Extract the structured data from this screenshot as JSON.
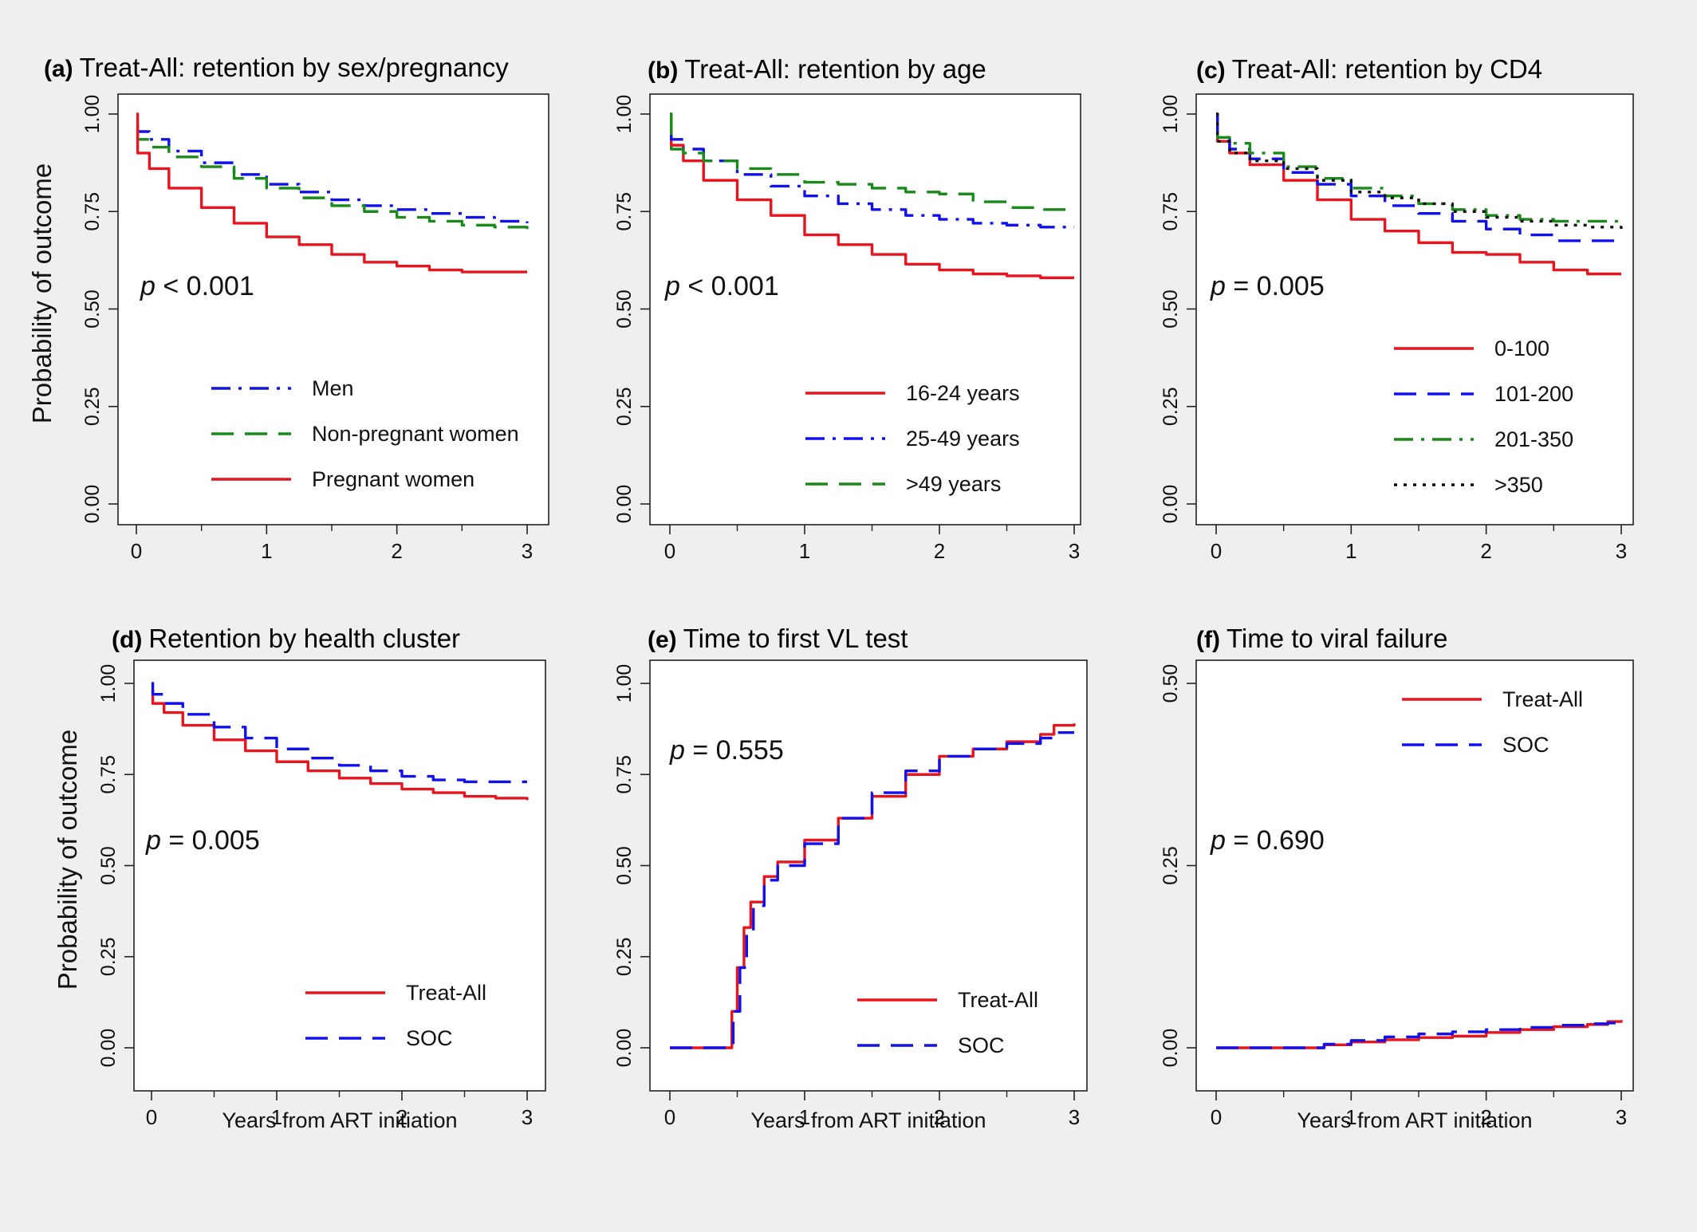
{
  "figure": {
    "ylabel": "Probability of outcome",
    "xlabel": "Years from ART initiation"
  },
  "chart_data": [
    {
      "id": "a",
      "type": "line",
      "title_prefix": "(a)",
      "title": "Treat-All: retention by sex/pregnancy",
      "pvalue_italic": "p",
      "pvalue_rest": " < 0.001",
      "xlim": [
        0,
        3
      ],
      "ylim": [
        0,
        1
      ],
      "xticks": [
        "0",
        "1",
        "2",
        "3"
      ],
      "yticks": [
        "0.00",
        "0.25",
        "0.50",
        "0.75",
        "1.00"
      ],
      "ylabel": "Probability of outcome",
      "xlabel": "",
      "legend_position": "bottom-right",
      "series": [
        {
          "name": "Men",
          "color": "#1111ee",
          "style": "dashdot",
          "x": [
            0,
            0.01,
            0.1,
            0.25,
            0.5,
            0.75,
            1.0,
            1.25,
            1.5,
            1.75,
            2.0,
            2.25,
            2.5,
            2.75,
            3.0
          ],
          "y": [
            0.97,
            0.955,
            0.935,
            0.905,
            0.875,
            0.845,
            0.82,
            0.8,
            0.78,
            0.765,
            0.755,
            0.745,
            0.735,
            0.725,
            0.72
          ]
        },
        {
          "name": "Non-pregnant women",
          "color": "#1a8a1a",
          "style": "dashed",
          "x": [
            0,
            0.01,
            0.1,
            0.25,
            0.5,
            0.75,
            1.0,
            1.25,
            1.5,
            1.75,
            2.0,
            2.25,
            2.5,
            2.75,
            3.0
          ],
          "y": [
            0.96,
            0.935,
            0.915,
            0.89,
            0.865,
            0.835,
            0.81,
            0.785,
            0.765,
            0.75,
            0.735,
            0.725,
            0.715,
            0.71,
            0.705
          ]
        },
        {
          "name": "Pregnant women",
          "color": "#e8141e",
          "style": "solid",
          "x": [
            0,
            0.01,
            0.1,
            0.25,
            0.5,
            0.75,
            1.0,
            1.25,
            1.5,
            1.75,
            2.0,
            2.25,
            2.5,
            2.75,
            3.0
          ],
          "y": [
            1.0,
            0.9,
            0.86,
            0.81,
            0.76,
            0.72,
            0.685,
            0.665,
            0.64,
            0.62,
            0.61,
            0.6,
            0.595,
            0.595,
            0.595
          ]
        }
      ]
    },
    {
      "id": "b",
      "type": "line",
      "title_prefix": "(b)",
      "title": "Treat-All: retention by age",
      "pvalue_italic": "p",
      "pvalue_rest": " < 0.001",
      "xlim": [
        0,
        3
      ],
      "ylim": [
        0,
        1
      ],
      "xticks": [
        "0",
        "1",
        "2",
        "3"
      ],
      "yticks": [
        "0.00",
        "0.25",
        "0.50",
        "0.75",
        "1.00"
      ],
      "ylabel": "",
      "xlabel": "",
      "legend_position": "bottom-right",
      "series": [
        {
          "name": "16-24 years",
          "color": "#e8141e",
          "style": "solid",
          "x": [
            0,
            0.01,
            0.1,
            0.25,
            0.5,
            0.75,
            1.0,
            1.25,
            1.5,
            1.75,
            2.0,
            2.25,
            2.5,
            2.75,
            3.0
          ],
          "y": [
            1.0,
            0.92,
            0.88,
            0.83,
            0.78,
            0.74,
            0.69,
            0.665,
            0.64,
            0.615,
            0.6,
            0.59,
            0.585,
            0.58,
            0.58
          ]
        },
        {
          "name": "25-49 years",
          "color": "#1111ee",
          "style": "dashdot",
          "x": [
            0,
            0.01,
            0.1,
            0.25,
            0.5,
            0.75,
            1.0,
            1.25,
            1.5,
            1.75,
            2.0,
            2.25,
            2.5,
            2.75,
            3.0
          ],
          "y": [
            0.95,
            0.935,
            0.91,
            0.88,
            0.845,
            0.815,
            0.79,
            0.77,
            0.755,
            0.74,
            0.73,
            0.72,
            0.715,
            0.71,
            0.71
          ]
        },
        {
          "name": ">49 years",
          "color": "#1a8a1a",
          "style": "dashed",
          "x": [
            0,
            0.01,
            0.1,
            0.25,
            0.5,
            0.75,
            1.0,
            1.25,
            1.5,
            1.75,
            2.0,
            2.25,
            2.5,
            2.75,
            3.0
          ],
          "y": [
            1.0,
            0.91,
            0.9,
            0.88,
            0.86,
            0.845,
            0.825,
            0.82,
            0.81,
            0.8,
            0.795,
            0.775,
            0.76,
            0.755,
            0.755
          ]
        }
      ]
    },
    {
      "id": "c",
      "type": "line",
      "title_prefix": "(c)",
      "title": "Treat-All: retention by CD4",
      "pvalue_italic": "p",
      "pvalue_rest": " = 0.005",
      "xlim": [
        0,
        3
      ],
      "ylim": [
        0,
        1
      ],
      "xticks": [
        "0",
        "1",
        "2",
        "3"
      ],
      "yticks": [
        "0.00",
        "0.25",
        "0.50",
        "0.75",
        "1.00"
      ],
      "ylabel": "",
      "xlabel": "",
      "legend_position": "bottom-right",
      "series": [
        {
          "name": "0-100",
          "color": "#e8141e",
          "style": "solid",
          "x": [
            0,
            0.01,
            0.1,
            0.25,
            0.5,
            0.75,
            1.0,
            1.25,
            1.5,
            1.75,
            2.0,
            2.25,
            2.5,
            2.75,
            3.0
          ],
          "y": [
            1.0,
            0.93,
            0.9,
            0.87,
            0.83,
            0.78,
            0.73,
            0.7,
            0.67,
            0.645,
            0.64,
            0.62,
            0.6,
            0.59,
            0.59
          ]
        },
        {
          "name": "101-200",
          "color": "#1111ee",
          "style": "dashed",
          "x": [
            0,
            0.01,
            0.1,
            0.25,
            0.5,
            0.75,
            1.0,
            1.25,
            1.5,
            1.75,
            2.0,
            2.25,
            2.5,
            2.75,
            3.0
          ],
          "y": [
            1.0,
            0.94,
            0.91,
            0.885,
            0.85,
            0.82,
            0.79,
            0.765,
            0.745,
            0.725,
            0.705,
            0.69,
            0.675,
            0.675,
            0.675
          ]
        },
        {
          "name": "201-350",
          "color": "#1a8a1a",
          "style": "dashdot",
          "x": [
            0,
            0.01,
            0.1,
            0.25,
            0.5,
            0.75,
            1.0,
            1.25,
            1.5,
            1.75,
            2.0,
            2.25,
            2.5,
            2.75,
            3.0
          ],
          "y": [
            0.95,
            0.94,
            0.925,
            0.9,
            0.865,
            0.835,
            0.81,
            0.79,
            0.77,
            0.755,
            0.74,
            0.73,
            0.725,
            0.725,
            0.72
          ]
        },
        {
          "name": ">350",
          "color": "#111111",
          "style": "dotted",
          "x": [
            0,
            0.01,
            0.1,
            0.25,
            0.5,
            0.75,
            1.0,
            1.25,
            1.5,
            1.75,
            2.0,
            2.25,
            2.5,
            2.75,
            3.0
          ],
          "y": [
            1.0,
            0.93,
            0.9,
            0.88,
            0.86,
            0.83,
            0.8,
            0.785,
            0.77,
            0.75,
            0.735,
            0.725,
            0.715,
            0.71,
            0.7
          ]
        }
      ]
    },
    {
      "id": "d",
      "type": "line",
      "title_prefix": "(d)",
      "title": "Retention by health cluster",
      "pvalue_italic": "p",
      "pvalue_rest": " = 0.005",
      "xlim": [
        0,
        3
      ],
      "ylim": [
        0,
        1
      ],
      "xticks": [
        "0",
        "1",
        "2",
        "3"
      ],
      "yticks": [
        "0.00",
        "0.25",
        "0.50",
        "0.75",
        "1.00"
      ],
      "ylabel": "Probability of outcome",
      "xlabel": "Years from ART initiation",
      "legend_position": "bottom-right",
      "series": [
        {
          "name": "Treat-All",
          "color": "#e8141e",
          "style": "solid",
          "x": [
            0,
            0.01,
            0.1,
            0.25,
            0.5,
            0.75,
            1.0,
            1.25,
            1.5,
            1.75,
            2.0,
            2.25,
            2.5,
            2.75,
            3.0
          ],
          "y": [
            0.98,
            0.945,
            0.92,
            0.885,
            0.845,
            0.815,
            0.785,
            0.76,
            0.74,
            0.725,
            0.71,
            0.7,
            0.69,
            0.685,
            0.68
          ]
        },
        {
          "name": "SOC",
          "color": "#1111ee",
          "style": "dashed",
          "x": [
            0,
            0.01,
            0.1,
            0.25,
            0.5,
            0.75,
            1.0,
            1.25,
            1.5,
            1.75,
            2.0,
            2.25,
            2.5,
            2.75,
            3.0
          ],
          "y": [
            1.0,
            0.97,
            0.945,
            0.915,
            0.88,
            0.85,
            0.82,
            0.795,
            0.775,
            0.76,
            0.745,
            0.735,
            0.73,
            0.73,
            0.73
          ]
        }
      ]
    },
    {
      "id": "e",
      "type": "line",
      "title_prefix": "(e)",
      "title": "Time to first VL test",
      "pvalue_italic": "p",
      "pvalue_rest": " = 0.555",
      "xlim": [
        0,
        3
      ],
      "ylim": [
        0,
        1
      ],
      "xticks": [
        "0",
        "1",
        "2",
        "3"
      ],
      "yticks": [
        "0.00",
        "0.25",
        "0.50",
        "0.75",
        "1.00"
      ],
      "ylabel": "",
      "xlabel": "Years from ART initiation",
      "legend_position": "bottom-right",
      "series": [
        {
          "name": "Treat-All",
          "color": "#e8141e",
          "style": "solid",
          "x": [
            0,
            0.4,
            0.42,
            0.46,
            0.5,
            0.55,
            0.6,
            0.7,
            0.8,
            1.0,
            1.25,
            1.5,
            1.75,
            2.0,
            2.25,
            2.5,
            2.75,
            2.85,
            3.0
          ],
          "y": [
            0,
            0,
            0.0,
            0.1,
            0.22,
            0.33,
            0.4,
            0.47,
            0.51,
            0.57,
            0.63,
            0.69,
            0.75,
            0.8,
            0.82,
            0.84,
            0.86,
            0.885,
            0.89
          ]
        },
        {
          "name": "SOC",
          "color": "#1111ee",
          "style": "dashed",
          "x": [
            0,
            0.4,
            0.43,
            0.47,
            0.52,
            0.57,
            0.62,
            0.7,
            0.8,
            1.0,
            1.25,
            1.5,
            1.75,
            2.0,
            2.25,
            2.5,
            2.75,
            2.85,
            3.0
          ],
          "y": [
            0,
            0,
            0.0,
            0.1,
            0.22,
            0.32,
            0.39,
            0.46,
            0.5,
            0.56,
            0.63,
            0.7,
            0.76,
            0.8,
            0.82,
            0.835,
            0.85,
            0.865,
            0.865
          ]
        }
      ]
    },
    {
      "id": "f",
      "type": "line",
      "title_prefix": "(f)",
      "title": "Time to viral failure",
      "pvalue_italic": "p",
      "pvalue_rest": " = 0.690",
      "xlim": [
        0,
        3
      ],
      "ylim": [
        0,
        0.5
      ],
      "xticks": [
        "0",
        "1",
        "2",
        "3"
      ],
      "yticks": [
        "0.00",
        "0.25",
        "0.50"
      ],
      "ylabel": "",
      "xlabel": "Years from ART initiation",
      "legend_position": "top-right",
      "series": [
        {
          "name": "Treat-All",
          "color": "#e8141e",
          "style": "solid",
          "x": [
            0,
            0.6,
            0.8,
            1.0,
            1.25,
            1.5,
            1.75,
            2.0,
            2.25,
            2.5,
            2.75,
            2.9,
            3.0
          ],
          "y": [
            0,
            0,
            0.004,
            0.008,
            0.011,
            0.014,
            0.016,
            0.021,
            0.025,
            0.029,
            0.032,
            0.036,
            0.038
          ]
        },
        {
          "name": "SOC",
          "color": "#1111ee",
          "style": "dashed",
          "x": [
            0,
            0.6,
            0.8,
            1.0,
            1.25,
            1.5,
            1.75,
            2.0,
            2.25,
            2.5,
            2.75,
            2.9,
            3.0
          ],
          "y": [
            0,
            0,
            0.005,
            0.01,
            0.015,
            0.019,
            0.022,
            0.025,
            0.028,
            0.031,
            0.033,
            0.034,
            0.035
          ]
        }
      ]
    }
  ]
}
